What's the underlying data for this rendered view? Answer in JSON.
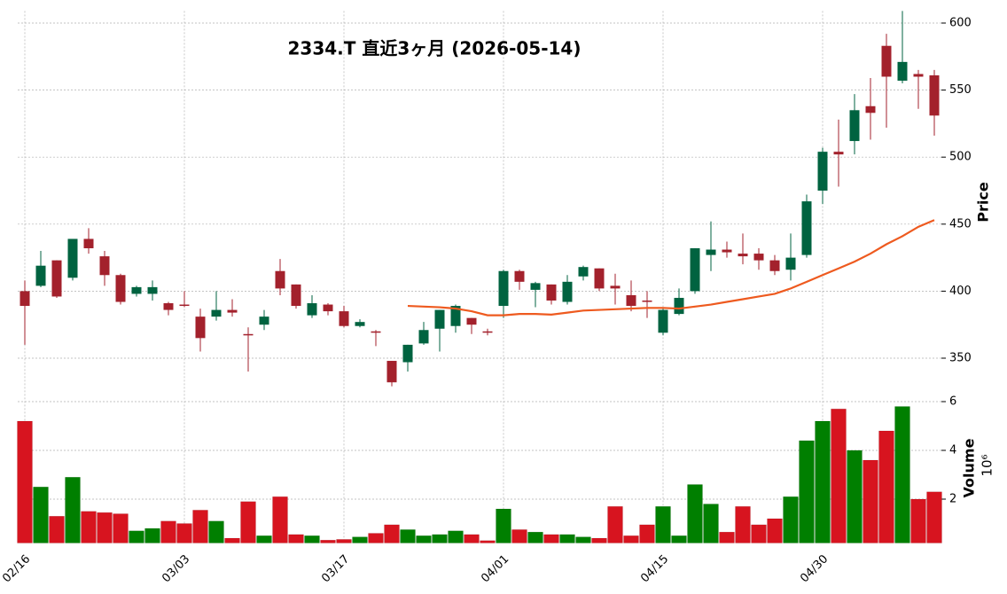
{
  "chart_data": {
    "type": "candlestick",
    "title": "2334.T 直近3ヶ月 (2026-05-14)",
    "categories": [
      "02/16",
      null,
      null,
      null,
      null,
      null,
      null,
      null,
      null,
      null,
      "03/03",
      null,
      null,
      null,
      null,
      null,
      null,
      null,
      null,
      null,
      "03/17",
      null,
      null,
      null,
      null,
      null,
      null,
      null,
      null,
      null,
      "04/01",
      null,
      null,
      null,
      null,
      null,
      null,
      null,
      null,
      null,
      "04/15",
      null,
      null,
      null,
      null,
      null,
      null,
      null,
      null,
      null,
      "04/30",
      null,
      null,
      null,
      null,
      null,
      null,
      null
    ],
    "open": [
      400,
      404,
      423,
      410,
      439,
      426,
      412,
      398,
      398,
      391,
      390,
      381,
      381,
      386,
      368,
      375,
      415,
      405,
      382,
      390,
      385,
      374,
      370,
      348,
      347,
      361,
      372,
      374,
      380,
      370,
      389,
      415,
      401,
      405,
      392,
      411,
      417,
      404,
      397,
      393,
      369,
      383,
      400,
      427,
      431,
      428,
      428,
      423,
      416,
      427,
      475,
      504,
      512,
      538,
      583,
      557,
      562,
      561
    ],
    "high": [
      408,
      430,
      423,
      439,
      447,
      430,
      413,
      404,
      408,
      392,
      400,
      387,
      400,
      394,
      373,
      386,
      424,
      405,
      397,
      391,
      389,
      379,
      371,
      348,
      360,
      377,
      386,
      390,
      380,
      372,
      416,
      416,
      407,
      405,
      412,
      419,
      417,
      413,
      408,
      400,
      387,
      402,
      432,
      452,
      437,
      443,
      432,
      427,
      443,
      472,
      507,
      528,
      547,
      559,
      592,
      609,
      565,
      565
    ],
    "low": [
      360,
      403,
      395,
      408,
      428,
      404,
      390,
      396,
      393,
      382,
      388,
      355,
      378,
      381,
      340,
      371,
      397,
      387,
      380,
      382,
      373,
      373,
      359,
      329,
      340,
      360,
      355,
      369,
      368,
      367,
      380,
      401,
      388,
      390,
      390,
      408,
      400,
      390,
      385,
      380,
      367,
      382,
      398,
      415,
      425,
      420,
      416,
      412,
      408,
      425,
      465,
      478,
      502,
      513,
      522,
      555,
      536,
      516
    ],
    "close": [
      389,
      419,
      396,
      439,
      432,
      412,
      392,
      403,
      403,
      386,
      389,
      365,
      386,
      384,
      367,
      381,
      402,
      389,
      391,
      385,
      374,
      377,
      369,
      332,
      360,
      371,
      386,
      389,
      375,
      369,
      415,
      407,
      406,
      393,
      407,
      418,
      402,
      402,
      389,
      392,
      386,
      395,
      432,
      431,
      429,
      426,
      423,
      415,
      425,
      467,
      504,
      502,
      535,
      533,
      560,
      571,
      560,
      531
    ],
    "up_color": "#006340",
    "down_color": "#a3212c",
    "ylim": [
      326,
      609
    ],
    "yticks": [
      350,
      400,
      450,
      500,
      550,
      600
    ],
    "ylabel": "Price",
    "grid": true,
    "ma": {
      "color": "#ee5a1f",
      "values": [
        null,
        null,
        null,
        null,
        null,
        null,
        null,
        null,
        null,
        null,
        null,
        null,
        null,
        null,
        null,
        null,
        null,
        null,
        null,
        null,
        null,
        null,
        null,
        null,
        389,
        388.5,
        388,
        387,
        385,
        382,
        382,
        383,
        383,
        382.5,
        384,
        385.5,
        386,
        386.5,
        387,
        387.5,
        387.5,
        387,
        388.5,
        390,
        392,
        394,
        396,
        398,
        402,
        407,
        412,
        417,
        422,
        428,
        435,
        441,
        448,
        453
      ]
    },
    "volume": {
      "type": "bar",
      "values": [
        5.2,
        2.5,
        1.3,
        2.9,
        1.5,
        1.45,
        1.4,
        0.7,
        0.8,
        1.1,
        1.0,
        1.55,
        1.1,
        0.4,
        1.9,
        0.5,
        2.1,
        0.55,
        0.5,
        0.32,
        0.35,
        0.45,
        0.6,
        0.95,
        0.75,
        0.5,
        0.55,
        0.7,
        0.55,
        0.3,
        1.6,
        0.75,
        0.65,
        0.55,
        0.55,
        0.45,
        0.4,
        1.7,
        0.5,
        0.95,
        1.7,
        0.5,
        2.6,
        1.8,
        0.65,
        1.7,
        0.95,
        1.2,
        2.1,
        4.4,
        5.2,
        5.7,
        4.0,
        3.6,
        4.8,
        5.8,
        2.0,
        2.3
      ],
      "up_color": "#007f00",
      "down_color": "#d7141f",
      "ylim": [
        0.2,
        6.2
      ],
      "yticks": [
        2,
        4,
        6
      ],
      "ylabel": "Volume",
      "exponent_label": "10⁶"
    }
  }
}
